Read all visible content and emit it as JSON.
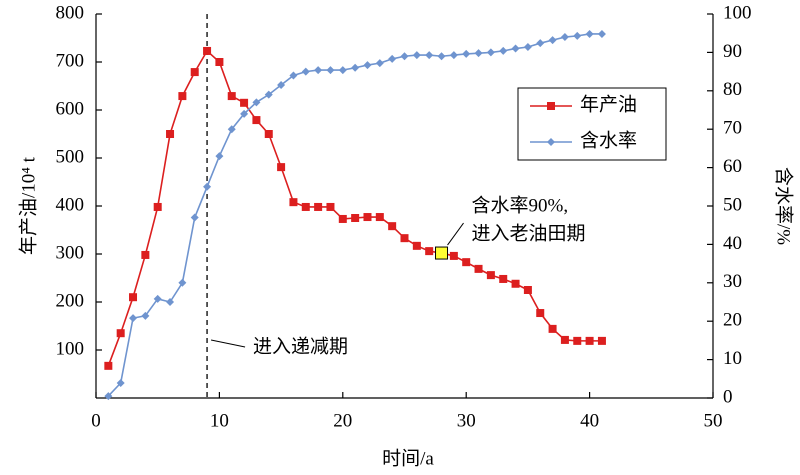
{
  "chart_data": {
    "type": "line",
    "x_label": "时间/a",
    "y_label": "年产油/10⁴ t",
    "y2_label": "含水率/%",
    "x": [
      1,
      2,
      3,
      4,
      5,
      6,
      7,
      8,
      9,
      10,
      11,
      12,
      13,
      14,
      15,
      16,
      17,
      18,
      19,
      20,
      21,
      22,
      23,
      24,
      25,
      26,
      27,
      28,
      29,
      30,
      31,
      32,
      33,
      34,
      35,
      36,
      37,
      38,
      39,
      40,
      41
    ],
    "series": [
      {
        "name": "年产油",
        "color": "#dc1f1f",
        "marker": "square",
        "values": [
          67,
          135,
          210,
          298,
          398,
          550,
          629,
          679,
          723,
          700,
          629,
          615,
          579,
          550,
          481,
          408,
          398,
          398,
          398,
          373,
          375,
          377,
          377,
          358,
          333,
          317,
          306,
          302,
          296,
          283,
          269,
          256,
          248,
          238,
          225,
          177,
          144,
          121,
          119,
          119,
          119
        ]
      },
      {
        "name": "含水率",
        "color": "#6f94cf",
        "marker": "diamond",
        "axis": "y2",
        "values": [
          0.5,
          3.9,
          20.8,
          21.4,
          25.8,
          25,
          30,
          47,
          55,
          63,
          70,
          74,
          77,
          79,
          81.5,
          84,
          85,
          85.4,
          85.4,
          85.4,
          86,
          86.7,
          87.2,
          88.3,
          89,
          89.3,
          89.3,
          89,
          89.3,
          89.6,
          89.8,
          90,
          90.4,
          91,
          91.4,
          92.4,
          93.2,
          94,
          94.3,
          94.8,
          94.8
        ]
      }
    ],
    "xlim": [
      0,
      50
    ],
    "xticks": [
      0,
      10,
      20,
      30,
      40,
      50
    ],
    "ylim": [
      0,
      800
    ],
    "yticks": [
      100,
      200,
      300,
      400,
      500,
      600,
      700,
      800
    ],
    "y2lim": [
      0,
      100
    ],
    "y2ticks": [
      0,
      10,
      20,
      30,
      40,
      50,
      60,
      70,
      80,
      90,
      100
    ],
    "vline": 9,
    "annotations": [
      {
        "lines": [
          "进入递减期"
        ],
        "x": 9
      },
      {
        "lines": [
          "含水率90%,",
          "进入老油田期"
        ],
        "x": 28,
        "highlight_color": "#ffff33"
      }
    ],
    "legend": "upper right"
  }
}
